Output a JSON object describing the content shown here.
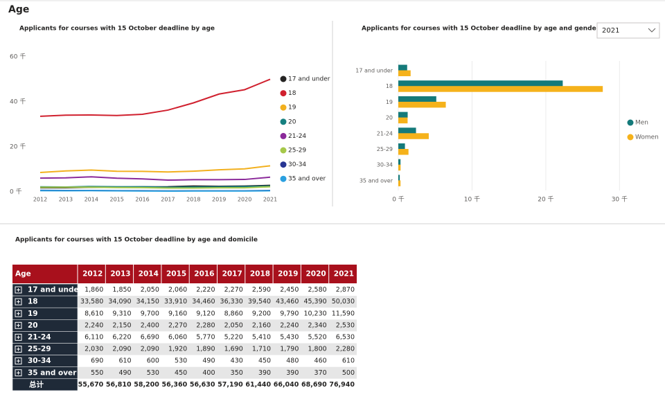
{
  "header": {
    "title": "Age"
  },
  "chart_data": [
    {
      "type": "line",
      "title": "Applicants for courses with 15 October deadline by age",
      "categories": [
        "2012",
        "2013",
        "2014",
        "2015",
        "2016",
        "2017",
        "2018",
        "2019",
        "2020",
        "2021"
      ],
      "series": [
        {
          "name": "17 and under",
          "color": "#252423",
          "values": [
            1860,
            1850,
            2050,
            2060,
            2220,
            2270,
            2590,
            2450,
            2580,
            2870
          ]
        },
        {
          "name": "18",
          "color": "#d0202e",
          "values": [
            33580,
            34090,
            34150,
            33910,
            34460,
            36330,
            39540,
            43460,
            45390,
            50030
          ]
        },
        {
          "name": "19",
          "color": "#f2b01e",
          "values": [
            8610,
            9310,
            9700,
            9160,
            9120,
            8860,
            9200,
            9790,
            10230,
            11590
          ]
        },
        {
          "name": "20",
          "color": "#168080",
          "values": [
            2240,
            2150,
            2400,
            2270,
            2280,
            2050,
            2160,
            2240,
            2340,
            2530
          ]
        },
        {
          "name": "21-24",
          "color": "#8b2a9a",
          "values": [
            6110,
            6220,
            6690,
            6060,
            5770,
            5220,
            5410,
            5430,
            5520,
            6530
          ]
        },
        {
          "name": "25-29",
          "color": "#a6c84a",
          "values": [
            2030,
            2090,
            2090,
            1920,
            1890,
            1690,
            1710,
            1790,
            1800,
            2280
          ]
        },
        {
          "name": "30-34",
          "color": "#283593",
          "values": [
            690,
            610,
            600,
            530,
            490,
            430,
            450,
            480,
            460,
            610
          ]
        },
        {
          "name": "35 and over",
          "color": "#2aa0e0",
          "values": [
            550,
            490,
            530,
            450,
            400,
            350,
            390,
            390,
            370,
            500
          ]
        }
      ],
      "ylim": [
        0,
        60000
      ],
      "yticks": [
        {
          "value": 0,
          "label": "0 千"
        },
        {
          "value": 20000,
          "label": "20 千"
        },
        {
          "value": 40000,
          "label": "40 千"
        },
        {
          "value": 60000,
          "label": "60 千"
        }
      ],
      "grid": false,
      "legend": "right"
    },
    {
      "type": "hbar",
      "title": "Applicants for courses with 15 October deadline by age and gender",
      "filter": "2021",
      "categories": [
        "17 and under",
        "18",
        "19",
        "20",
        "21-24",
        "25-29",
        "30-34",
        "35 and over"
      ],
      "series": [
        {
          "name": "Men",
          "color": "#147a7a",
          "values": [
            1200,
            22300,
            5150,
            1270,
            2400,
            900,
            300,
            200
          ]
        },
        {
          "name": "Women",
          "color": "#f5b21b",
          "values": [
            1670,
            27730,
            6440,
            1260,
            4130,
            1380,
            310,
            300
          ]
        }
      ],
      "xlim": [
        0,
        31000
      ],
      "xticks": [
        {
          "value": 0,
          "label": "0 千"
        },
        {
          "value": 10000,
          "label": "10 千"
        },
        {
          "value": 20000,
          "label": "20 千"
        },
        {
          "value": 30000,
          "label": "30 千"
        }
      ],
      "grid": true,
      "legend": "right"
    }
  ],
  "table": {
    "title": "Applicants for courses with 15 October deadline by age and domicile",
    "header": [
      "Age",
      "2012",
      "2013",
      "2014",
      "2015",
      "2016",
      "2017",
      "2018",
      "2019",
      "2020",
      "2021"
    ],
    "rows": [
      [
        "17 and under",
        "1,860",
        "1,850",
        "2,050",
        "2,060",
        "2,220",
        "2,270",
        "2,590",
        "2,450",
        "2,580",
        "2,870"
      ],
      [
        "18",
        "33,580",
        "34,090",
        "34,150",
        "33,910",
        "34,460",
        "36,330",
        "39,540",
        "43,460",
        "45,390",
        "50,030"
      ],
      [
        "19",
        "8,610",
        "9,310",
        "9,700",
        "9,160",
        "9,120",
        "8,860",
        "9,200",
        "9,790",
        "10,230",
        "11,590"
      ],
      [
        "20",
        "2,240",
        "2,150",
        "2,400",
        "2,270",
        "2,280",
        "2,050",
        "2,160",
        "2,240",
        "2,340",
        "2,530"
      ],
      [
        "21-24",
        "6,110",
        "6,220",
        "6,690",
        "6,060",
        "5,770",
        "5,220",
        "5,410",
        "5,430",
        "5,520",
        "6,530"
      ],
      [
        "25-29",
        "2,030",
        "2,090",
        "2,090",
        "1,920",
        "1,890",
        "1,690",
        "1,710",
        "1,790",
        "1,800",
        "2,280"
      ],
      [
        "30-34",
        "690",
        "610",
        "600",
        "530",
        "490",
        "430",
        "450",
        "480",
        "460",
        "610"
      ],
      [
        "35 and over",
        "550",
        "490",
        "530",
        "450",
        "400",
        "350",
        "390",
        "390",
        "370",
        "500"
      ],
      [
        "总计",
        "55,670",
        "56,810",
        "58,200",
        "56,360",
        "56,630",
        "57,190",
        "61,440",
        "66,040",
        "68,690",
        "76,940"
      ]
    ]
  }
}
